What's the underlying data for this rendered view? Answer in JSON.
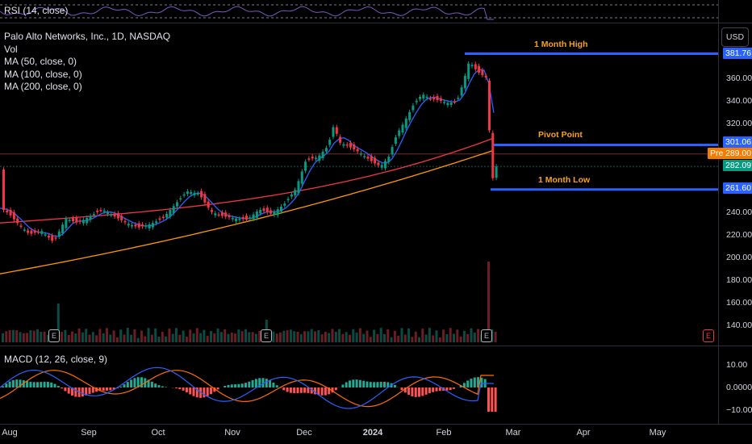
{
  "symbol": {
    "title": "Palo Alto Networks, Inc., 1D, NASDAQ",
    "indicators": [
      "Vol",
      "MA (50, close, 0)",
      "MA (100, close, 0)",
      "MA (200, close, 0)"
    ]
  },
  "rsi": {
    "label": "RSI (14, close)"
  },
  "macd": {
    "label": "MACD (12, 26, close, 9)",
    "ticks": [
      "10.00",
      "0.0000",
      "−10.00"
    ]
  },
  "currency": "USD",
  "price_axis": {
    "ticks": [
      "360.00",
      "340.00",
      "320.00",
      "240.00",
      "220.00",
      "200.00",
      "180.00",
      "160.00",
      "140.00"
    ],
    "tags": [
      {
        "text": "381.76",
        "color": "#2962ff"
      },
      {
        "text": "301.06",
        "color": "#2962ff"
      },
      {
        "text": "289.00",
        "color": "#f57c00",
        "prefix": "Pre"
      },
      {
        "text": "282.09",
        "color": "#089981"
      },
      {
        "text": "261.60",
        "color": "#2962ff"
      }
    ]
  },
  "levels": {
    "high": "1 Month High",
    "pivot": "Pivot Point",
    "low": "1 Month Low"
  },
  "time_axis": [
    "Aug",
    "Sep",
    "Oct",
    "Nov",
    "Dec",
    "2024",
    "Feb",
    "Mar",
    "Apr",
    "May"
  ],
  "earnings_badge": "E",
  "colors": {
    "up": "#089981",
    "down": "#f23645",
    "ma50": "#2962ff",
    "ma100": "#f23645",
    "ma200": "#ff9800"
  }
}
